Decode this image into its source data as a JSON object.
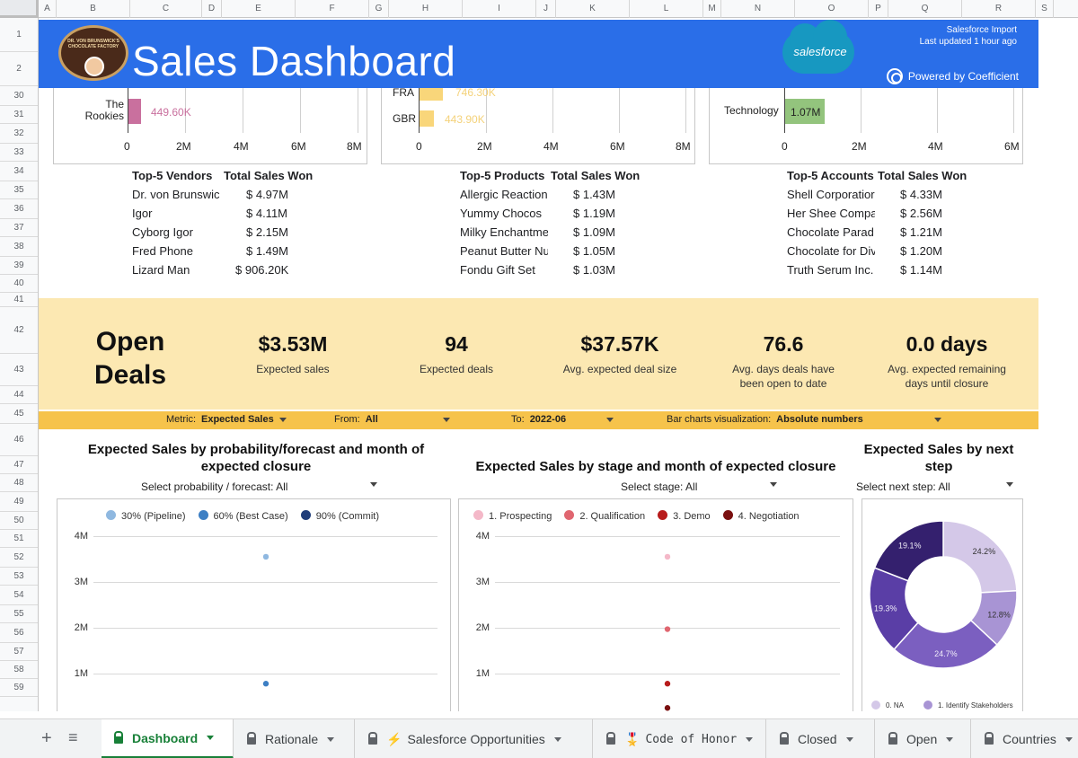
{
  "columns": [
    "A",
    "B",
    "C",
    "D",
    "E",
    "F",
    "G",
    "H",
    "I",
    "J",
    "K",
    "L",
    "M",
    "N",
    "O",
    "P",
    "Q",
    "R",
    "S"
  ],
  "rows": [
    "1",
    "2",
    "30",
    "31",
    "32",
    "33",
    "34",
    "35",
    "36",
    "37",
    "38",
    "39",
    "40",
    "41",
    "42",
    "43",
    "44",
    "45",
    "46",
    "47",
    "48",
    "49",
    "50",
    "51",
    "52",
    "53",
    "54",
    "55",
    "56",
    "57",
    "58",
    "59"
  ],
  "banner": {
    "title": "Sales Dashboard",
    "logo_text": "DR. VON BRUNSWICK'S CHOCOLATE FACTORY",
    "salesforce_logo": "salesforce",
    "import_line1": "Salesforce Import",
    "import_line2": "Last updated 1 hour ago",
    "powered_by": "Powered by Coefficient",
    "color": "#2a6ee8"
  },
  "top_charts": {
    "vendors": {
      "label": "The Rookies",
      "value_label": "449.60K",
      "bar_color": "#c9709e",
      "ticks": [
        "0",
        "2M",
        "4M",
        "6M",
        "8M"
      ]
    },
    "products": {
      "labels": [
        "FRA",
        "GBR"
      ],
      "value_labels": [
        "746.30K",
        "443.90K"
      ],
      "bar_color": "#f9d67a",
      "ticks": [
        "0",
        "2M",
        "4M",
        "6M",
        "8M"
      ]
    },
    "accounts": {
      "label": "Technology",
      "value_label": "1.07M",
      "bar_color": "#93c47d",
      "ticks": [
        "0",
        "2M",
        "4M",
        "6M"
      ]
    }
  },
  "top5": {
    "vendors": {
      "header_name": "Top-5 Vendors",
      "header_value": "Total Sales Won",
      "rows": [
        {
          "name": "Dr. von Brunswic",
          "value": "$ 4.97M"
        },
        {
          "name": "Igor",
          "value": "$ 4.11M"
        },
        {
          "name": "Cyborg Igor",
          "value": "$ 2.15M"
        },
        {
          "name": "Fred Phone",
          "value": "$ 1.49M"
        },
        {
          "name": "Lizard Man",
          "value": "$ 906.20K"
        }
      ]
    },
    "products": {
      "header_name": "Top-5 Products",
      "header_value": "Total Sales Won",
      "rows": [
        {
          "name": "Allergic Reaction",
          "value": "$ 1.43M"
        },
        {
          "name": "Yummy Chocos",
          "value": "$ 1.19M"
        },
        {
          "name": "Milky Enchantme",
          "value": "$ 1.09M"
        },
        {
          "name": "Peanut Butter Nu",
          "value": "$ 1.05M"
        },
        {
          "name": "Fondu Gift Set",
          "value": "$ 1.03M"
        }
      ]
    },
    "accounts": {
      "header_name": "Top-5 Accounts",
      "header_value": "Total Sales Won",
      "rows": [
        {
          "name": "Shell Corporatior",
          "value": "$ 4.33M"
        },
        {
          "name": "Her Shee Compa",
          "value": "$ 2.56M"
        },
        {
          "name": "Chocolate Parad",
          "value": "$ 1.21M"
        },
        {
          "name": "Chocolate for Div",
          "value": "$ 1.20M"
        },
        {
          "name": "Truth Serum Inc.",
          "value": "$ 1.14M"
        }
      ]
    }
  },
  "open_deals": {
    "title_line1": "Open",
    "title_line2": "Deals",
    "kpis": [
      {
        "value": "$3.53M",
        "label1": "Expected sales",
        "label2": ""
      },
      {
        "value": "94",
        "label1": "Expected deals",
        "label2": ""
      },
      {
        "value": "$37.57K",
        "label1": "Avg. expected deal size",
        "label2": ""
      },
      {
        "value": "76.6",
        "label1": "Avg. days deals have",
        "label2": "been open to date"
      },
      {
        "value": "0.0 days",
        "label1": "Avg. expected remaining",
        "label2": "days until closure"
      }
    ]
  },
  "filters": {
    "metric_label": "Metric:",
    "metric_value": "Expected Sales",
    "from_label": "From:",
    "from_value": "All",
    "to_label": "To:",
    "to_value": "2022-06",
    "viz_label": "Bar charts visualization:",
    "viz_value": "Absolute numbers"
  },
  "chart_data": [
    {
      "type": "scatter",
      "title": "Expected Sales by probability/forecast and month of expected closure",
      "selector_label": "Select probability / forecast:",
      "selector_value": "All",
      "ylim": [
        0,
        4000000
      ],
      "yticks": [
        "1M",
        "2M",
        "3M",
        "4M"
      ],
      "series": [
        {
          "name": "30% (Pipeline)",
          "color": "#8fb8e0",
          "values": [
            3550000
          ]
        },
        {
          "name": "60% (Best Case)",
          "color": "#3d7fc4",
          "values": [
            780000,
            0
          ]
        },
        {
          "name": "90% (Commit)",
          "color": "#1f3d7a",
          "values": []
        }
      ]
    },
    {
      "type": "scatter",
      "title": "Expected Sales by stage and month of expected closure",
      "selector_label": "Select stage:",
      "selector_value": "All",
      "ylim": [
        0,
        4000000
      ],
      "yticks": [
        "1M",
        "2M",
        "3M",
        "4M"
      ],
      "series": [
        {
          "name": "1. Prospecting",
          "color": "#f4b8c8",
          "values": [
            3550000
          ]
        },
        {
          "name": "2. Qualification",
          "color": "#e06670",
          "values": [
            1970000
          ]
        },
        {
          "name": "3. Demo",
          "color": "#b81c1c",
          "values": [
            780000
          ]
        },
        {
          "name": "4. Negotiation",
          "color": "#7a1010",
          "values": [
            250000
          ]
        }
      ]
    },
    {
      "type": "pie",
      "title": "Expected Sales by next step",
      "selector_label": "Select next step:",
      "selector_value": "All",
      "slices": [
        {
          "name": "0. NA",
          "value": 24.2,
          "label": "24.2%",
          "color": "#d4c8e8"
        },
        {
          "name": "1. Identify Stakeholders",
          "value": 12.8,
          "label": "12.8%",
          "color": "#a894d4"
        },
        {
          "name": "",
          "value": 24.7,
          "label": "24.7%",
          "color": "#7b5fc0"
        },
        {
          "name": "",
          "value": 19.3,
          "label": "19.3%",
          "color": "#5a3ea6"
        },
        {
          "name": "",
          "value": 19.1,
          "label": "19.1%",
          "color": "#34206e"
        }
      ]
    }
  ],
  "tabs": [
    {
      "label": "Dashboard",
      "emoji": "",
      "active": true
    },
    {
      "label": "Rationale",
      "emoji": "",
      "active": false
    },
    {
      "label": "Salesforce Opportunities",
      "emoji": "⚡",
      "active": false
    },
    {
      "label": "Code of Honor",
      "emoji": "🎖️",
      "active": false
    },
    {
      "label": "Closed",
      "emoji": "",
      "active": false
    },
    {
      "label": "Open",
      "emoji": "",
      "active": false
    },
    {
      "label": "Countries",
      "emoji": "",
      "active": false
    }
  ],
  "add_sheet": "+",
  "all_sheets": "≡"
}
